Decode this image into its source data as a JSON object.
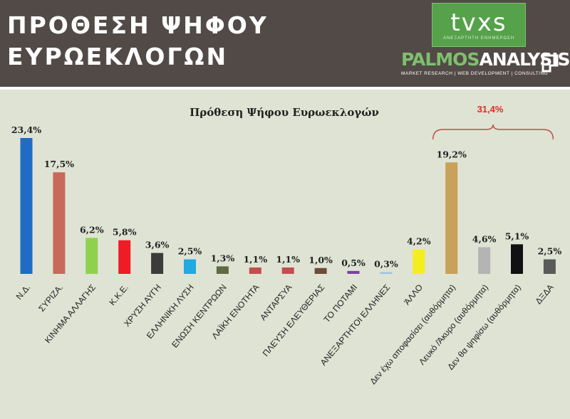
{
  "header": {
    "title": "ΠΡΟΘΕΣΗ ΨΗΦΟΥ\nΕΥΡΩΕΚΛΟΓΩΝ",
    "tvxs_logo": "tvxs",
    "tvxs_tagline": "ΑΝΕΞΑΡΤΗΤΗ ΕΝΗΜΕΡΩΣΗ",
    "palmos_logo_part1": "PALMOS",
    "palmos_logo_part2": "ANALYSIS",
    "palmos_tagline": "MARKET RESEARCH | WEB DEVELOPMENT | CONSULTING",
    "palmos_icon": "square-corner-icon"
  },
  "colors": {
    "header_bg": "#524a47",
    "panel_bg": "#dfe3d3",
    "bracket": "#c0504d",
    "group_label": "#e02b20"
  },
  "chart_data": {
    "type": "bar",
    "title": "Πρόθεση Ψήφου Ευρωεκλογών",
    "ylim": [
      0,
      25
    ],
    "grid": false,
    "categories": [
      "Ν.Δ.",
      "ΣΥΡΙΖΑ.",
      "ΚΙΝΗΜΑ ΑΛΛΑΓΗΣ",
      "Κ.Κ.Ε.",
      "ΧΡΥΣΗ ΑΥΓΗ",
      "ΕΛΛΗΝΙΚΗ ΛΥΣΗ",
      "ΕΝΩΣΗ ΚΕΝΤΡΩΩΝ",
      "ΛΑΪΚΗ ΕΝΟΤΗΤΑ",
      "ΑΝΤΑΡΣΥΑ",
      "ΠΛΕΥΣΗ ΕΛΕΥΘΕΡΙΑΣ",
      "ΤΟ ΠΟΤΑΜΙ",
      "ΑΝΕΞΑΡΤΗΤΟΙ ΕΛΛΗΝΕΣ",
      "ΆΛΛΟ",
      "Δεν έχω αποφασίσει (αυθόρμητα)",
      "Λευκό /Άκυρο (αυθόρμητα)",
      "Δεν θα ψηφίσω (αυθόρμητα)",
      "ΔΞΔΑ"
    ],
    "values": [
      23.4,
      17.5,
      6.2,
      5.8,
      3.6,
      2.5,
      1.3,
      1.1,
      1.1,
      1.0,
      0.5,
      0.3,
      4.2,
      19.2,
      4.6,
      5.1,
      2.5
    ],
    "value_labels": [
      "23,4%",
      "17,5%",
      "6,2%",
      "5,8%",
      "3,6%",
      "2,5%",
      "1,3%",
      "1,1%",
      "1,1%",
      "1,0%",
      "0,5%",
      "0,3%",
      "4,2%",
      "19,2%",
      "4,6%",
      "5,1%",
      "2,5%"
    ],
    "bar_colors": [
      "#1f6cc4",
      "#c86a5a",
      "#8fd14f",
      "#ee1c25",
      "#3b3b3b",
      "#21a9e1",
      "#5f6a42",
      "#c0504d",
      "#c0504d",
      "#6e4b3a",
      "#7b3fa0",
      "#9bc2e6",
      "#f5ee1e",
      "#c8a15a",
      "#b4b4b4",
      "#111111",
      "#5a5a5a"
    ],
    "group_annotation": {
      "label": "31,4%",
      "from_category": 13,
      "to_category": 16
    }
  }
}
